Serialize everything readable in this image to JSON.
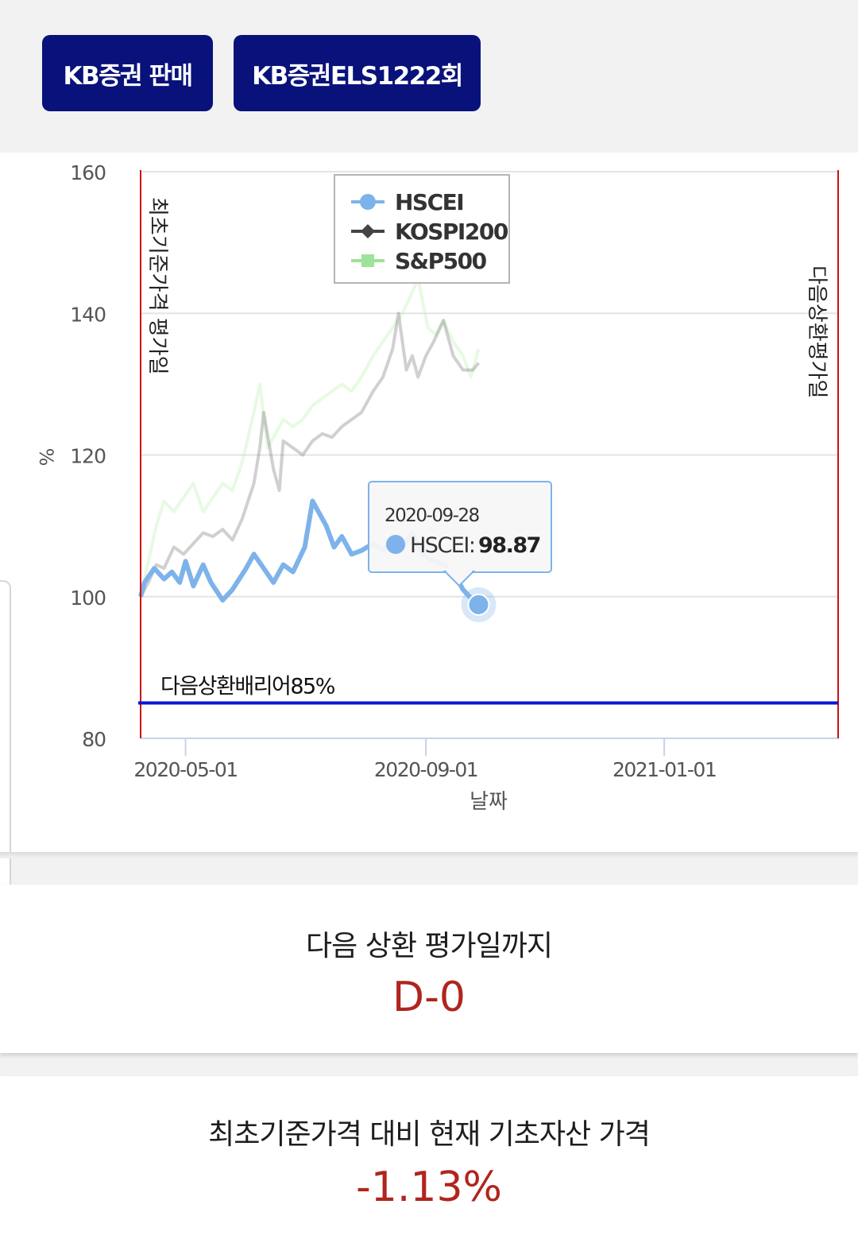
{
  "header": {
    "buttons": [
      {
        "label": "KB증권 판매"
      },
      {
        "label": "KB증권ELS1222회"
      }
    ]
  },
  "chart_data": {
    "type": "line",
    "xlabel": "날짜",
    "ylabel": "%",
    "ylim": [
      80,
      160
    ],
    "yticks": [
      "80",
      "100",
      "120",
      "140",
      "160"
    ],
    "xticks": [
      "2020-05-01",
      "2020-09-01",
      "2021-01-01"
    ],
    "xlim": [
      "2020-04-08",
      "2021-03-31"
    ],
    "grid": true,
    "legend_position": "top-left",
    "reference_lines": {
      "vertical": [
        {
          "date": "2020-04-08",
          "label": "최초기준가격 평가일",
          "color": "#cc1111"
        },
        {
          "date": "2021-03-31",
          "label": "다음상환평가일",
          "color": "#cc1111"
        }
      ],
      "horizontal": [
        {
          "value": 85,
          "label": "다음상환배리어85%",
          "color": "#0a14d8"
        }
      ]
    },
    "series": [
      {
        "name": "HSCEI",
        "color": "#7db3ea",
        "points": [
          [
            "2020-04-08",
            100
          ],
          [
            "2020-04-10",
            102
          ],
          [
            "2020-04-15",
            104
          ],
          [
            "2020-04-20",
            102.5
          ],
          [
            "2020-04-24",
            103.5
          ],
          [
            "2020-04-28",
            102
          ],
          [
            "2020-05-01",
            105
          ],
          [
            "2020-05-05",
            101.5
          ],
          [
            "2020-05-10",
            104.5
          ],
          [
            "2020-05-14",
            102
          ],
          [
            "2020-05-20",
            99.5
          ],
          [
            "2020-05-25",
            101
          ],
          [
            "2020-06-01",
            104
          ],
          [
            "2020-06-05",
            106
          ],
          [
            "2020-06-10",
            104
          ],
          [
            "2020-06-15",
            102
          ],
          [
            "2020-06-20",
            104.5
          ],
          [
            "2020-06-25",
            103.5
          ],
          [
            "2020-07-01",
            107
          ],
          [
            "2020-07-05",
            113.5
          ],
          [
            "2020-07-08",
            112
          ],
          [
            "2020-07-12",
            110
          ],
          [
            "2020-07-16",
            107
          ],
          [
            "2020-07-20",
            108.5
          ],
          [
            "2020-07-25",
            106
          ],
          [
            "2020-07-30",
            106.5
          ],
          [
            "2020-08-05",
            107.5
          ],
          [
            "2020-08-10",
            106.5
          ],
          [
            "2020-08-15",
            108
          ],
          [
            "2020-08-20",
            107
          ],
          [
            "2020-08-25",
            109
          ],
          [
            "2020-08-30",
            106
          ],
          [
            "2020-09-05",
            105
          ],
          [
            "2020-09-10",
            104.5
          ],
          [
            "2020-09-15",
            103.5
          ],
          [
            "2020-09-20",
            101
          ],
          [
            "2020-09-25",
            99.5
          ],
          [
            "2020-09-28",
            98.87
          ]
        ]
      },
      {
        "name": "KOSPI200",
        "color": "#444444",
        "points": [
          [
            "2020-04-08",
            100
          ],
          [
            "2020-04-12",
            102
          ],
          [
            "2020-04-16",
            104.5
          ],
          [
            "2020-04-20",
            104
          ],
          [
            "2020-04-25",
            107
          ],
          [
            "2020-04-30",
            106
          ],
          [
            "2020-05-05",
            107.5
          ],
          [
            "2020-05-10",
            109
          ],
          [
            "2020-05-15",
            108.5
          ],
          [
            "2020-05-20",
            109.5
          ],
          [
            "2020-05-25",
            108
          ],
          [
            "2020-05-30",
            111
          ],
          [
            "2020-06-05",
            116
          ],
          [
            "2020-06-08",
            121
          ],
          [
            "2020-06-10",
            126
          ],
          [
            "2020-06-15",
            118
          ],
          [
            "2020-06-18",
            115
          ],
          [
            "2020-06-20",
            122
          ],
          [
            "2020-06-25",
            121
          ],
          [
            "2020-06-30",
            120
          ],
          [
            "2020-07-05",
            122
          ],
          [
            "2020-07-10",
            123
          ],
          [
            "2020-07-15",
            122.5
          ],
          [
            "2020-07-20",
            124
          ],
          [
            "2020-07-25",
            125
          ],
          [
            "2020-07-30",
            126
          ],
          [
            "2020-08-05",
            129
          ],
          [
            "2020-08-10",
            131
          ],
          [
            "2020-08-15",
            135
          ],
          [
            "2020-08-18",
            140
          ],
          [
            "2020-08-22",
            132
          ],
          [
            "2020-08-25",
            134
          ],
          [
            "2020-08-28",
            131
          ],
          [
            "2020-09-01",
            134
          ],
          [
            "2020-09-05",
            136
          ],
          [
            "2020-09-10",
            139
          ],
          [
            "2020-09-15",
            134
          ],
          [
            "2020-09-20",
            132
          ],
          [
            "2020-09-25",
            132
          ],
          [
            "2020-09-28",
            133
          ]
        ]
      },
      {
        "name": "S&P500",
        "color": "#b9f0b0",
        "points": [
          [
            "2020-04-08",
            100
          ],
          [
            "2020-04-12",
            105
          ],
          [
            "2020-04-16",
            110
          ],
          [
            "2020-04-20",
            113.5
          ],
          [
            "2020-04-25",
            112
          ],
          [
            "2020-04-30",
            114
          ],
          [
            "2020-05-05",
            116
          ],
          [
            "2020-05-10",
            112
          ],
          [
            "2020-05-15",
            114
          ],
          [
            "2020-05-20",
            116
          ],
          [
            "2020-05-25",
            115
          ],
          [
            "2020-05-30",
            119
          ],
          [
            "2020-06-05",
            126
          ],
          [
            "2020-06-08",
            130
          ],
          [
            "2020-06-12",
            121
          ],
          [
            "2020-06-16",
            123
          ],
          [
            "2020-06-20",
            125
          ],
          [
            "2020-06-25",
            124
          ],
          [
            "2020-06-30",
            125
          ],
          [
            "2020-07-05",
            127
          ],
          [
            "2020-07-10",
            128
          ],
          [
            "2020-07-15",
            129
          ],
          [
            "2020-07-20",
            130
          ],
          [
            "2020-07-25",
            129
          ],
          [
            "2020-07-30",
            131
          ],
          [
            "2020-08-05",
            134
          ],
          [
            "2020-08-10",
            136
          ],
          [
            "2020-08-15",
            138
          ],
          [
            "2020-08-20",
            140
          ],
          [
            "2020-08-25",
            143
          ],
          [
            "2020-08-28",
            145
          ],
          [
            "2020-09-02",
            138
          ],
          [
            "2020-09-06",
            137
          ],
          [
            "2020-09-10",
            139
          ],
          [
            "2020-09-15",
            136
          ],
          [
            "2020-09-20",
            134
          ],
          [
            "2020-09-24",
            131
          ],
          [
            "2020-09-28",
            135
          ]
        ]
      }
    ],
    "tooltip": {
      "date": "2020-09-28",
      "series": "HSCEI",
      "label": "HSCEI: ",
      "value": "98.87"
    }
  },
  "cards": [
    {
      "title": "다음 상환 평가일까지",
      "value": "D-0"
    },
    {
      "title": "최초기준가격 대비 현재 기초자산 가격",
      "value": "-1.13%"
    }
  ]
}
